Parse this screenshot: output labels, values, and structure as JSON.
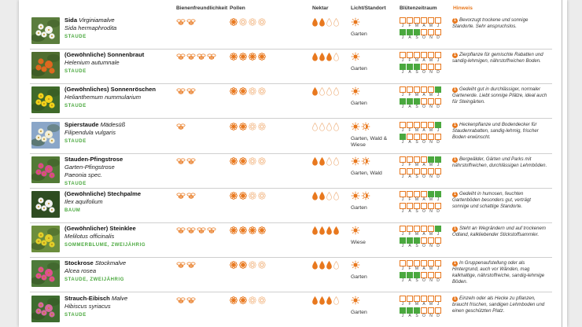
{
  "headers": {
    "bees": "Bienenfreundlichkeit",
    "pollen": "Pollen",
    "nectar": "Nektar",
    "light": "Licht/Standort",
    "bloom": "Blütenzeitraum",
    "hint": "Hinweis"
  },
  "month_labels_top": [
    "J",
    "F",
    "M",
    "A",
    "M",
    "J"
  ],
  "month_labels_bottom": [
    "J",
    "A",
    "S",
    "O",
    "N",
    "D"
  ],
  "colors": {
    "accent": "#e8781e",
    "green": "#4aa83e"
  },
  "rows": [
    {
      "title": "Sida",
      "title_italic": "Virginiamalve",
      "sci": "Sida hermaphrodita",
      "category": "STAUDE",
      "bees": 2,
      "pollen": 1,
      "nectar": 2,
      "light": [
        "sun"
      ],
      "light_text": "Garten",
      "bloom_top": [
        0,
        0,
        0,
        0,
        0,
        0
      ],
      "bloom_bottom": [
        1,
        1,
        1,
        0,
        0,
        0
      ],
      "hint_num": "1",
      "hint": "Bevorzugt trockene und sonnige Standorte. Sehr anspruchslos.",
      "photo": "white"
    },
    {
      "title": "(Gewöhnliche) Sonnenbraut",
      "title_italic": "",
      "sci": "Helenium autumnale",
      "category": "STAUDE",
      "bees": 4,
      "pollen": 4,
      "nectar": 3,
      "light": [
        "sun"
      ],
      "light_text": "Garten",
      "bloom_top": [
        0,
        0,
        0,
        0,
        0,
        0
      ],
      "bloom_bottom": [
        1,
        1,
        1,
        0,
        0,
        0
      ],
      "hint_num": "1",
      "hint": "Zierpflanze für gemischte Rabatten und sandig-lehmigen, nährstoffreichen Boden.",
      "photo": "orange"
    },
    {
      "title": "(Gewöhnliches) Sonnenröschen",
      "title_italic": "",
      "sci": "Helianthemum nummularium",
      "category": "STAUDE",
      "bees": 2,
      "pollen": 2,
      "nectar": 1,
      "light": [
        "sun"
      ],
      "light_text": "Garten",
      "bloom_top": [
        0,
        0,
        0,
        0,
        0,
        1
      ],
      "bloom_bottom": [
        1,
        1,
        1,
        0,
        0,
        0
      ],
      "hint_num": "1",
      "hint": "Gedeiht gut in durchlässiger, normaler Gartenerde. Liebt sonnige Plätze, ideal auch für Steingärten.",
      "photo": "yellow"
    },
    {
      "title": "Spierstaude",
      "title_italic": "Mädesüß",
      "sci": "Filipendula vulgaris",
      "category": "STAUDE",
      "bees": 1,
      "pollen": 2,
      "nectar": 0,
      "light": [
        "sun",
        "halfshade"
      ],
      "light_text": "Garten, Wald & Wiese",
      "bloom_top": [
        0,
        0,
        0,
        0,
        0,
        1
      ],
      "bloom_bottom": [
        1,
        0,
        0,
        0,
        0,
        0
      ],
      "hint_num": "1",
      "hint": "Heckenpflanze und Bodendecker für Staudenrabatten, sandig-lehmig, frischer Boden erwünscht.",
      "photo": "cream"
    },
    {
      "title": "Stauden-Pfingstrose",
      "title_italic": "",
      "sci": "Garten-Pfingstrose",
      "sci2": "Paeonia spec.",
      "category": "STAUDE",
      "bees": 2,
      "pollen": 2,
      "nectar": 2,
      "light": [
        "sun",
        "halfshade"
      ],
      "light_text": "Garten, Wald",
      "bloom_top": [
        0,
        0,
        0,
        0,
        1,
        1
      ],
      "bloom_bottom": [
        0,
        0,
        0,
        0,
        0,
        0
      ],
      "hint_num": "1",
      "hint": "Bergwälder, Gärten und Parks mit nährstoffreichen, durchlässigen Lehmböden.",
      "photo": "pink"
    },
    {
      "title": "(Gewöhnliche) Stechpalme",
      "title_italic": "",
      "sci": "Ilex aquifolium",
      "category": "BAUM",
      "bees": 2,
      "pollen": 2,
      "nectar": 2,
      "light": [
        "sun",
        "halfshade"
      ],
      "light_text": "Garten",
      "bloom_top": [
        0,
        0,
        0,
        0,
        1,
        1
      ],
      "bloom_bottom": [
        0,
        0,
        0,
        0,
        0,
        0
      ],
      "hint_num": "1",
      "hint": "Gedeiht in humosen, feuchten Gartenböden besonders gut, verträgt sonnige und schattige Standorte.",
      "photo": "whitesmall"
    },
    {
      "title": "(Gewöhnlicher) Steinklee",
      "title_italic": "",
      "sci": "Melilotus officinalis",
      "category": "SOMMERBLUME, ZWEIJÄHRIG",
      "bees": 4,
      "pollen": 4,
      "nectar": 4,
      "light": [
        "sun"
      ],
      "light_text": "Wiese",
      "bloom_top": [
        0,
        0,
        0,
        0,
        0,
        1
      ],
      "bloom_bottom": [
        1,
        1,
        1,
        0,
        0,
        0
      ],
      "hint_num": "1",
      "hint": "Steht an Wegrändern und auf trockenem Ödland, kalkliebender Stickstoffsammler.",
      "photo": "yellowgreen"
    },
    {
      "title": "Stockrose",
      "title_italic": "Stockmalve",
      "sci": "Alcea rosea",
      "category": "STAUDE, ZWEIJÄHRIG",
      "bees": 2,
      "pollen": 2,
      "nectar": 3,
      "light": [
        "sun"
      ],
      "light_text": "Garten",
      "bloom_top": [
        0,
        0,
        0,
        0,
        0,
        0
      ],
      "bloom_bottom": [
        1,
        1,
        1,
        0,
        0,
        0
      ],
      "hint_num": "1",
      "hint": "In Gruppenaufstellung oder als Hintergrund, auch vor Wänden, mag kalkhaltige, nährstoffreiche, sandig-lehmige Böden.",
      "photo": "magenta"
    },
    {
      "title": "Strauch-Eibisch",
      "title_italic": "Malve",
      "sci": "Hibiscus syriacus",
      "category": "STAUDE",
      "bees": 2,
      "pollen": 2,
      "nectar": 3,
      "light": [
        "sun"
      ],
      "light_text": "Garten",
      "bloom_top": [
        0,
        0,
        0,
        0,
        0,
        0
      ],
      "bloom_bottom": [
        1,
        1,
        1,
        0,
        0,
        0
      ],
      "hint_num": "1",
      "hint": "Einzeln oder als Hecke zu pflanzen, braucht frischen, sandigen Lehmboden und einen geschützten Platz.",
      "photo": "pinkbig"
    }
  ]
}
